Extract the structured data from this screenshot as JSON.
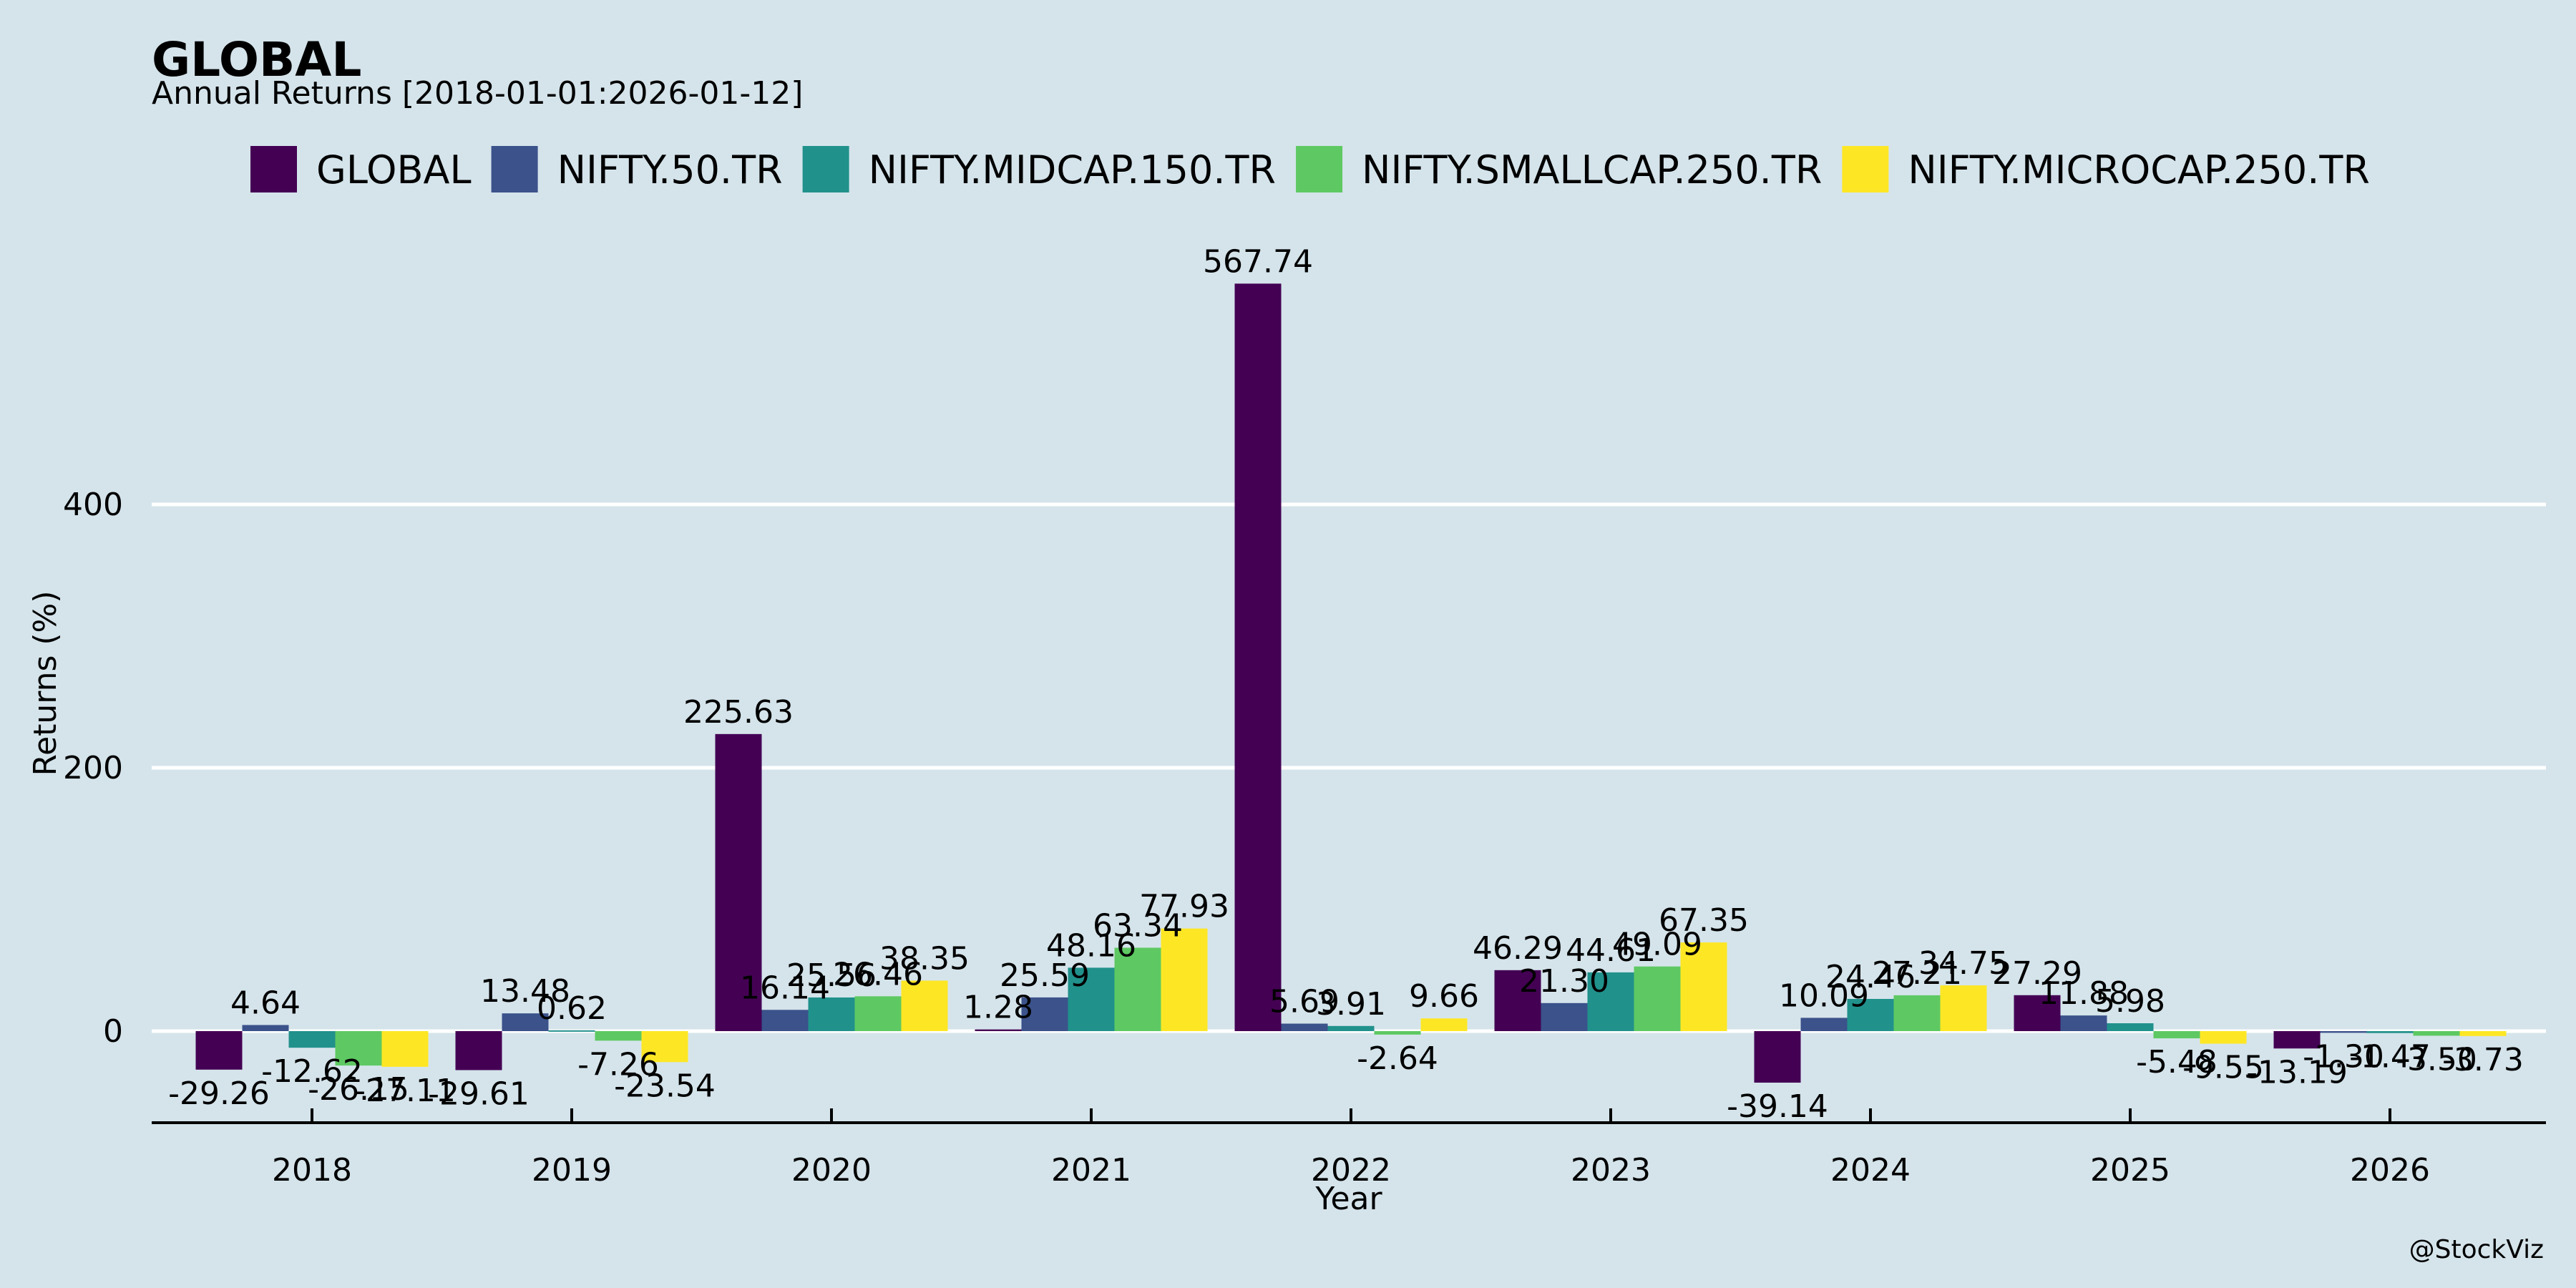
{
  "chart_data": {
    "type": "bar",
    "title": "GLOBAL",
    "subtitle": "Annual Returns [2018-01-01:2026-01-12]",
    "xlabel": "Year",
    "ylabel": "Returns (%)",
    "categories": [
      "2018",
      "2019",
      "2020",
      "2021",
      "2022",
      "2023",
      "2024",
      "2025",
      "2026"
    ],
    "yticks": [
      0,
      200,
      400
    ],
    "ylim": [
      -70,
      600
    ],
    "grid": true,
    "legend_position": "top",
    "series": [
      {
        "name": "GLOBAL",
        "color": "#440154",
        "values": [
          -29.26,
          -29.61,
          225.63,
          1.28,
          567.74,
          46.29,
          -39.14,
          27.29,
          -13.19
        ]
      },
      {
        "name": "NIFTY.50.TR",
        "color": "#3b528b",
        "values": [
          4.64,
          13.48,
          16.14,
          25.59,
          5.69,
          21.3,
          10.09,
          11.88,
          -1.3
        ]
      },
      {
        "name": "NIFTY.MIDCAP.150.TR",
        "color": "#21918c",
        "values": [
          -12.62,
          0.62,
          25.56,
          48.16,
          3.91,
          44.61,
          24.46,
          5.98,
          -1.47
        ]
      },
      {
        "name": "NIFTY.SMALLCAP.250.TR",
        "color": "#5ec962",
        "values": [
          -26.15,
          -7.26,
          26.46,
          63.34,
          -2.64,
          49.09,
          27.21,
          -5.48,
          -3.5
        ]
      },
      {
        "name": "NIFTY.MICROCAP.250.TR",
        "color": "#fde725",
        "values": [
          -27.11,
          -23.54,
          38.35,
          77.93,
          9.66,
          67.35,
          34.75,
          -9.55,
          -3.73
        ]
      }
    ]
  },
  "watermark": "@StockViz"
}
